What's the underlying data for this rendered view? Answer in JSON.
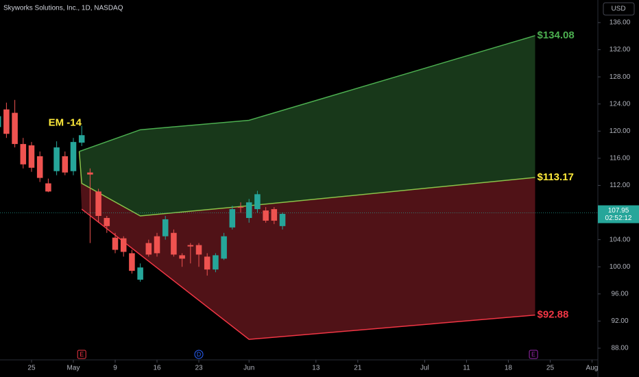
{
  "chart_data": {
    "type": "candlestick",
    "title": "Skyworks Solutions, Inc., 1D, NASDAQ",
    "currency": "USD",
    "xlim": [
      -3.77,
      67.7
    ],
    "ylim": [
      86.28,
      139.33
    ],
    "xticks": [
      {
        "value": 0,
        "label": "25"
      },
      {
        "value": 5,
        "label": "May"
      },
      {
        "value": 10,
        "label": "9"
      },
      {
        "value": 15,
        "label": "16"
      },
      {
        "value": 20,
        "label": "23"
      },
      {
        "value": 26,
        "label": "Jun"
      },
      {
        "value": 34,
        "label": "13"
      },
      {
        "value": 39,
        "label": "21"
      },
      {
        "value": 47,
        "label": "Jul"
      },
      {
        "value": 52,
        "label": "11"
      },
      {
        "value": 57,
        "label": "18"
      },
      {
        "value": 62,
        "label": "25"
      },
      {
        "value": 67,
        "label": "Aug"
      }
    ],
    "yticks": [
      {
        "value": 88,
        "label": "88.00"
      },
      {
        "value": 92,
        "label": "92.00"
      },
      {
        "value": 96,
        "label": "96.00"
      },
      {
        "value": 100,
        "label": "100.00"
      },
      {
        "value": 104,
        "label": "104.00"
      },
      {
        "value": 108,
        "label": "108.00"
      },
      {
        "value": 112,
        "label": "112.00"
      },
      {
        "value": 116,
        "label": "116.00"
      },
      {
        "value": 120,
        "label": "120.00"
      },
      {
        "value": 124,
        "label": "124.00"
      },
      {
        "value": 128,
        "label": "128.00"
      },
      {
        "value": 132,
        "label": "132.00"
      },
      {
        "value": 136,
        "label": "136.00"
      }
    ],
    "grid": false,
    "up_color": "#26a69a",
    "down_color": "#ef5350",
    "x": [
      -4,
      -3,
      -2,
      -1,
      0,
      1,
      2,
      3,
      4,
      5,
      6,
      7,
      8,
      9,
      10,
      11,
      12,
      13,
      14,
      15,
      16,
      17,
      18,
      19,
      20,
      21,
      22,
      23,
      24,
      25,
      26,
      27,
      28,
      29,
      30
    ],
    "open": [
      120.6,
      123.2,
      122.7,
      118.1,
      117.9,
      116.3,
      112.3,
      114.1,
      116.3,
      114.1,
      118.3,
      113.9,
      111.1,
      107.2,
      104.3,
      104.2,
      102.0,
      98.1,
      103.5,
      104.5,
      104.5,
      105.0,
      101.7,
      103.2,
      103.2,
      101.5,
      99.6,
      101.2,
      105.8,
      108.8,
      107.2,
      108.5,
      108.3,
      108.5,
      106.0
    ],
    "high": [
      123.0,
      124.2,
      124.6,
      119.0,
      118.4,
      117.0,
      113.0,
      118.5,
      117.0,
      119.0,
      120.8,
      114.5,
      111.5,
      107.5,
      105.0,
      104.5,
      102.5,
      100.5,
      104.0,
      105.0,
      107.5,
      105.5,
      102.0,
      103.5,
      103.5,
      102.0,
      102.0,
      105.0,
      109.0,
      109.5,
      110.0,
      111.2,
      108.8,
      108.8,
      108.0
    ],
    "low": [
      120.0,
      119.0,
      117.6,
      114.5,
      114.0,
      112.5,
      111.0,
      113.5,
      113.5,
      113.5,
      117.8,
      103.5,
      106.5,
      105.0,
      102.0,
      101.5,
      99.0,
      97.8,
      101.5,
      101.5,
      104.0,
      101.5,
      100.0,
      100.5,
      100.0,
      98.7,
      99.2,
      101.0,
      105.5,
      108.0,
      106.5,
      108.0,
      106.5,
      106.3,
      105.5
    ],
    "close": [
      122.2,
      119.6,
      118.1,
      115.1,
      114.6,
      113.1,
      111.1,
      117.6,
      113.9,
      118.4,
      119.4,
      113.6,
      107.5,
      106.0,
      102.5,
      102.2,
      99.4,
      99.9,
      101.8,
      102.0,
      107.0,
      101.8,
      101.2,
      103.0,
      101.8,
      99.6,
      101.7,
      104.5,
      108.5,
      108.7,
      109.5,
      110.7,
      106.8,
      106.8,
      107.8
    ],
    "last_price": {
      "value": 107.95,
      "label": "107.95"
    },
    "countdown": "02:52:12",
    "last_color": "#26a69a",
    "cone": [
      {
        "name": "upper",
        "color": "#4caf50",
        "label_color": "#4caf50",
        "x": [
          5.7,
          13,
          26,
          60.2
        ],
        "values": [
          117.0,
          120.2,
          121.6,
          134.08
        ],
        "value_labels": [
          null,
          null,
          null,
          "$134.08"
        ]
      },
      {
        "name": "middle",
        "color": "#8bc34a",
        "label_color": "#ffeb3b",
        "x": [
          5.7,
          6,
          13,
          26,
          60.2
        ],
        "values": [
          117.0,
          112.3,
          107.5,
          109.0,
          113.17
        ],
        "value_labels": [
          null,
          null,
          null,
          null,
          "$113.17"
        ]
      },
      {
        "name": "lower",
        "color": "#f23645",
        "label_color": "#f23645",
        "x": [
          6,
          26,
          60.2
        ],
        "values": [
          108.5,
          89.3,
          92.88
        ],
        "value_labels": [
          null,
          null,
          "$92.88"
        ]
      }
    ],
    "upper_fill": "rgba(76,175,80,0.32)",
    "lower_fill": "rgba(242,54,69,0.33)",
    "annotation": {
      "text": "EM -14",
      "x": 4,
      "y": 121.2,
      "color": "#ffeb3b"
    },
    "events": [
      {
        "x": 6,
        "label": "E",
        "color": "#f23645"
      },
      {
        "x": 20,
        "label": "D",
        "color": "#2962ff"
      },
      {
        "x": 60,
        "label": "E",
        "color": "#9c27b0"
      }
    ]
  }
}
